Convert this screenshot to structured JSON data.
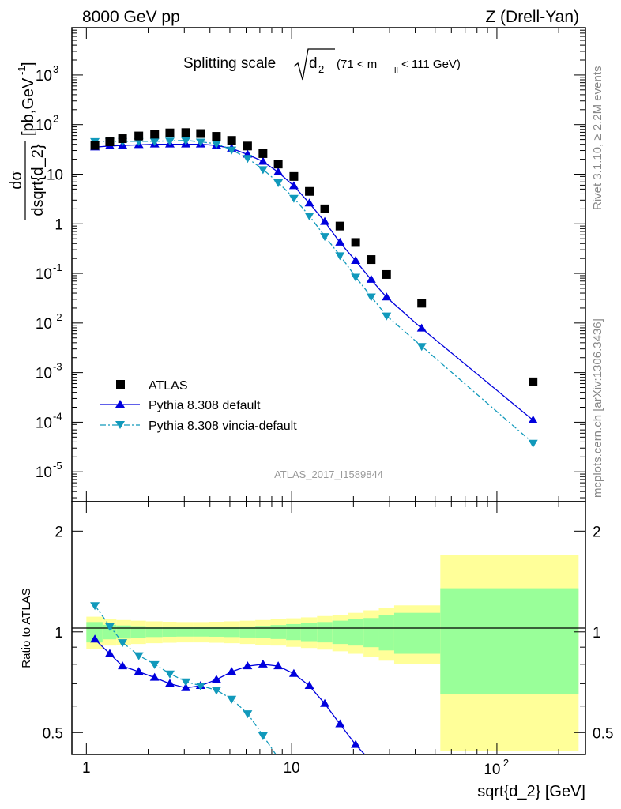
{
  "header": {
    "left": "8000 GeV pp",
    "right": "Z (Drell-Yan)"
  },
  "side": {
    "rivet": "Rivet 3.1.10, ≥ 2.2M events",
    "mcplots": "mcplots.cern.ch [arXiv:1306.3436]"
  },
  "plot_title": {
    "main": "Splitting scale",
    "sub": "2",
    "range": "(71 < m",
    "range_sub": "ll",
    "range_end": " < 111 GeV)"
  },
  "watermark": "ATLAS_2017_I1589844",
  "ylabel_main": {
    "num": "dσ",
    "den": "dsqrt{d_2}",
    "unit": "[pb,GeV",
    "unit_sup": "-1",
    "unit_end": "]"
  },
  "ylabel_ratio": "Ratio to ATLAS",
  "xlabel": "sqrt{d_2} [GeV]",
  "legend": [
    {
      "label": "ATLAS",
      "color": "#000000",
      "marker": "square"
    },
    {
      "label": "Pythia 8.308 default",
      "color": "#0000dd",
      "marker": "triangle-up"
    },
    {
      "label": "Pythia 8.308 vincia-default",
      "color": "#1199bb",
      "marker": "triangle-down"
    }
  ],
  "chart_data": [
    {
      "type": "scatter",
      "x_scale": "log",
      "y_scale": "log",
      "xlim": [
        0.85,
        270
      ],
      "ylim": [
        2.5e-06,
        9000
      ],
      "x_tick_labels": [
        "1",
        "10",
        "10^2"
      ],
      "y_tick_labels": [
        "10^-5",
        "10^-4",
        "10^-3",
        "10^-2",
        "10^-1",
        "1",
        "10",
        "10^2",
        "10^3"
      ],
      "series": [
        {
          "name": "ATLAS",
          "x": [
            1.1,
            1.3,
            1.5,
            1.8,
            2.15,
            2.55,
            3.05,
            3.6,
            4.3,
            5.1,
            6.1,
            7.25,
            8.6,
            10.25,
            12.2,
            14.5,
            17.2,
            20.5,
            24.4,
            29,
            43,
            150
          ],
          "y": [
            38,
            45,
            52,
            59,
            64,
            68,
            69,
            66,
            58,
            48,
            37,
            26,
            16,
            9,
            4.5,
            2.0,
            0.9,
            0.42,
            0.19,
            0.095,
            0.025,
            0.00065
          ]
        },
        {
          "name": "Pythia 8.308 default",
          "x": [
            1.1,
            1.3,
            1.5,
            1.8,
            2.15,
            2.55,
            3.05,
            3.6,
            4.3,
            5.1,
            6.1,
            7.25,
            8.6,
            10.25,
            12.2,
            14.5,
            17.2,
            20.5,
            24.4,
            29,
            43,
            150
          ],
          "y": [
            35,
            37,
            38,
            39,
            40,
            40,
            40,
            40,
            38,
            33,
            25,
            18,
            11,
            5.8,
            2.6,
            1.1,
            0.42,
            0.18,
            0.075,
            0.033,
            0.0078,
            0.00011
          ]
        },
        {
          "name": "Pythia 8.308 vincia-default",
          "x": [
            1.1,
            1.3,
            1.5,
            1.8,
            2.15,
            2.55,
            3.05,
            3.6,
            4.3,
            5.1,
            6.1,
            7.25,
            8.6,
            10.25,
            12.2,
            14.5,
            17.2,
            20.5,
            24.4,
            29,
            43,
            150
          ],
          "y": [
            46,
            46,
            46,
            46,
            46,
            47,
            48,
            45,
            41,
            31,
            21,
            12.5,
            6.8,
            3.3,
            1.45,
            0.56,
            0.23,
            0.085,
            0.034,
            0.014,
            0.0034,
            3.8e-05
          ]
        }
      ]
    },
    {
      "type": "line",
      "x_scale": "log",
      "y_scale": "log",
      "xlim": [
        0.85,
        270
      ],
      "ylim": [
        0.43,
        2.45
      ],
      "y_tick_labels": [
        "0.5",
        "1",
        "2"
      ],
      "series": [
        {
          "name": "Pythia 8.308 default",
          "x": [
            1.1,
            1.3,
            1.5,
            1.8,
            2.15,
            2.55,
            3.05,
            3.6,
            4.3,
            5.1,
            6.1,
            7.25,
            8.6,
            10.25,
            12.2,
            14.5,
            17.2,
            20.5,
            24.4
          ],
          "y": [
            0.95,
            0.86,
            0.79,
            0.76,
            0.73,
            0.7,
            0.68,
            0.69,
            0.72,
            0.76,
            0.79,
            0.8,
            0.79,
            0.75,
            0.69,
            0.61,
            0.53,
            0.46,
            0.41
          ]
        },
        {
          "name": "Pythia 8.308 vincia-default",
          "x": [
            1.1,
            1.3,
            1.5,
            1.8,
            2.15,
            2.55,
            3.05,
            3.6,
            4.3,
            5.1,
            6.1,
            7.25,
            8.6
          ],
          "y": [
            1.2,
            1.04,
            0.93,
            0.85,
            0.8,
            0.75,
            0.71,
            0.69,
            0.67,
            0.63,
            0.57,
            0.49,
            0.42
          ]
        }
      ],
      "bands": {
        "edges": [
          1.0,
          1.2,
          1.4,
          1.65,
          1.95,
          2.35,
          2.75,
          3.3,
          3.95,
          4.7,
          5.6,
          6.65,
          7.9,
          9.4,
          11.1,
          13.3,
          15.8,
          18.9,
          22.4,
          26.6,
          31.6,
          53,
          250
        ],
        "green": [
          0.07,
          0.05,
          0.045,
          0.04,
          0.035,
          0.033,
          0.032,
          0.032,
          0.033,
          0.035,
          0.038,
          0.042,
          0.048,
          0.055,
          0.062,
          0.07,
          0.08,
          0.09,
          0.1,
          0.12,
          0.14,
          0.35
        ],
        "yellow": [
          0.11,
          0.09,
          0.085,
          0.08,
          0.075,
          0.072,
          0.07,
          0.07,
          0.072,
          0.075,
          0.08,
          0.085,
          0.09,
          0.098,
          0.105,
          0.115,
          0.125,
          0.14,
          0.16,
          0.18,
          0.2,
          0.7
        ]
      }
    }
  ]
}
